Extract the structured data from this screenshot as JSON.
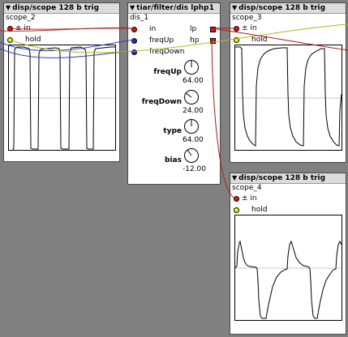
{
  "scope_2": {
    "type_label": "disp/scope 128 b trig",
    "instance_name": "scope_2",
    "inlet_label": "± in",
    "hold_label": "hold"
  },
  "dis_1": {
    "type_label": "tiar/filter/dis lphp1",
    "instance_name": "dis_1",
    "inlets": [
      "in",
      "freqUp",
      "freqDown"
    ],
    "outlets": [
      "lp",
      "hp"
    ],
    "knobs": [
      {
        "label": "freqUp",
        "value": "64.00"
      },
      {
        "label": "freqDown",
        "value": "24.00"
      },
      {
        "label": "type",
        "value": "64.00"
      },
      {
        "label": "bias",
        "value": "-12.00"
      }
    ]
  },
  "scope_3": {
    "type_label": "disp/scope 128 b trig",
    "instance_name": "scope_3",
    "inlet_label": "± in",
    "hold_label": "hold"
  },
  "scope_4": {
    "type_label": "disp/scope 128 b trig",
    "instance_name": "scope_4",
    "inlet_label": "± in",
    "hold_label": "hold"
  },
  "colors": {
    "background": "#808080",
    "wire_red": "#b01818",
    "wire_blue": "#2a3bd0",
    "wire_yellow": "#b8b81a"
  }
}
